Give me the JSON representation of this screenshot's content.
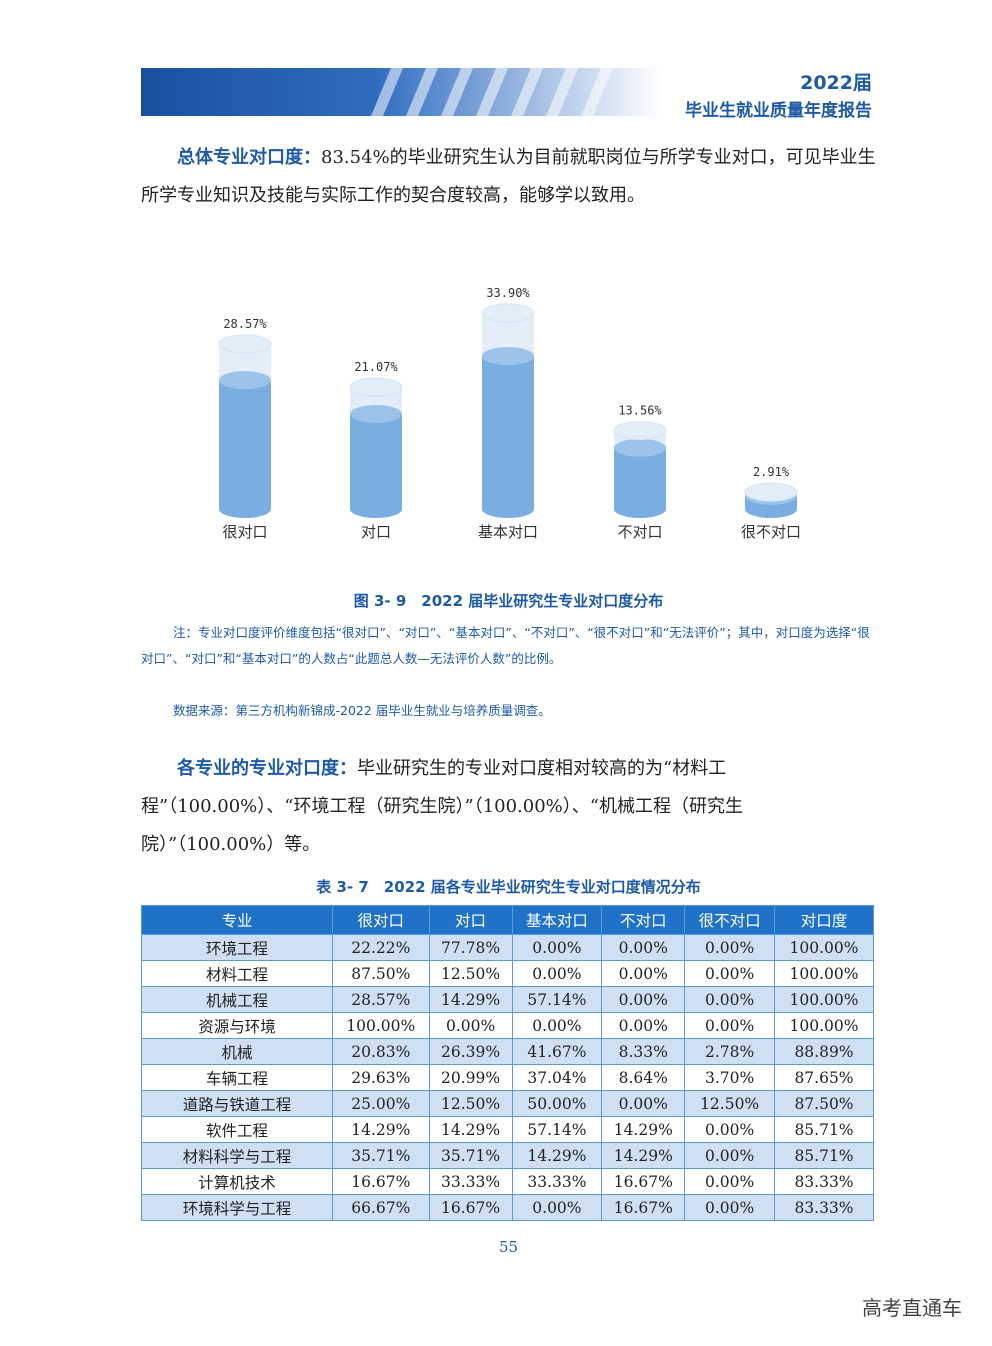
{
  "header": {
    "year": "2022届",
    "title": "毕业生就业质量年度报告"
  },
  "para1": {
    "lead": "总体专业对口度：",
    "text": "83.54%的毕业研究生认为目前就职岗位与所学专业对口，可见毕业生所学专业知识及技能与实际工作的契合度较高，能够学以致用。"
  },
  "chart_data": {
    "type": "bar",
    "categories": [
      "很对口",
      "对口",
      "基本对口",
      "不对口",
      "很不对口"
    ],
    "values": [
      28.57,
      21.07,
      33.9,
      13.56,
      2.91
    ],
    "value_labels": [
      "28.57%",
      "21.07%",
      "33.90%",
      "13.56%",
      "2.91%"
    ],
    "ylim": [
      0,
      33.9
    ],
    "colors": {
      "body": "#7aaee0",
      "top": "#e3eef9",
      "body_top": "#9cc3ea"
    }
  },
  "figure_caption": "图 3- 9　2022 届毕业研究生专业对口度分布",
  "notes": {
    "note1": "注：专业对口度评价维度包括“很对口”、“对口”、“基本对口”、“不对口”、“很不对口”和“无法评价”；其中，对口度为选择“很对口”、“对口”和“基本对口”的人数占“此题总人数—无法评价人数”的比例。",
    "source": "数据来源：第三方机构新锦成-2022 届毕业生就业与培养质量调查。"
  },
  "para2": {
    "lead": "各专业的专业对口度：",
    "text": "毕业研究生的专业对口度相对较高的为“材料工程”（100.00%）、“环境工程（研究生院）”（100.00%）、“机械工程（研究生院）”（100.00%）等。"
  },
  "table_caption": "表 3- 7　2022 届各专业毕业研究生专业对口度情况分布",
  "table": {
    "headers": [
      "专业",
      "很对口",
      "对口",
      "基本对口",
      "不对口",
      "很不对口",
      "对口度"
    ],
    "rows": [
      [
        "环境工程",
        "22.22%",
        "77.78%",
        "0.00%",
        "0.00%",
        "0.00%",
        "100.00%"
      ],
      [
        "材料工程",
        "87.50%",
        "12.50%",
        "0.00%",
        "0.00%",
        "0.00%",
        "100.00%"
      ],
      [
        "机械工程",
        "28.57%",
        "14.29%",
        "57.14%",
        "0.00%",
        "0.00%",
        "100.00%"
      ],
      [
        "资源与环境",
        "100.00%",
        "0.00%",
        "0.00%",
        "0.00%",
        "0.00%",
        "100.00%"
      ],
      [
        "机械",
        "20.83%",
        "26.39%",
        "41.67%",
        "8.33%",
        "2.78%",
        "88.89%"
      ],
      [
        "车辆工程",
        "29.63%",
        "20.99%",
        "37.04%",
        "8.64%",
        "3.70%",
        "87.65%"
      ],
      [
        "道路与铁道工程",
        "25.00%",
        "12.50%",
        "50.00%",
        "0.00%",
        "12.50%",
        "87.50%"
      ],
      [
        "软件工程",
        "14.29%",
        "14.29%",
        "57.14%",
        "14.29%",
        "0.00%",
        "85.71%"
      ],
      [
        "材料科学与工程",
        "35.71%",
        "35.71%",
        "14.29%",
        "14.29%",
        "0.00%",
        "85.71%"
      ],
      [
        "计算机技术",
        "16.67%",
        "33.33%",
        "33.33%",
        "16.67%",
        "0.00%",
        "83.33%"
      ],
      [
        "环境科学与工程",
        "66.67%",
        "16.67%",
        "0.00%",
        "16.67%",
        "0.00%",
        "83.33%"
      ]
    ]
  },
  "page_number": "55",
  "watermark": "高考直通车"
}
